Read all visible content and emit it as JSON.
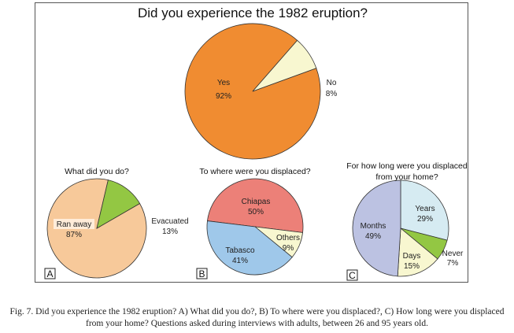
{
  "chart_data": [
    {
      "type": "pie",
      "title": "Did you experience the 1982 eruption?",
      "slices": [
        {
          "label": "Yes",
          "value": 92,
          "value_label": "92%",
          "color": "#f08c31"
        },
        {
          "label": "No",
          "value": 8,
          "value_label": "8%",
          "color": "#f8f7d0"
        }
      ]
    },
    {
      "type": "pie",
      "panel": "A",
      "title": "What did you do?",
      "slices": [
        {
          "label": "Ran away",
          "value": 87,
          "value_label": "87%",
          "color": "#f7c99a"
        },
        {
          "label": "Evacuated",
          "value": 13,
          "value_label": "13%",
          "color": "#93c743"
        }
      ]
    },
    {
      "type": "pie",
      "panel": "B",
      "title": "To where were you displaced?",
      "slices": [
        {
          "label": "Chiapas",
          "value": 50,
          "value_label": "50%",
          "color": "#ec8078"
        },
        {
          "label": "Others",
          "value": 9,
          "value_label": "9%",
          "color": "#f8f7d0"
        },
        {
          "label": "Tabasco",
          "value": 41,
          "value_label": "41%",
          "color": "#9fc8ea"
        }
      ]
    },
    {
      "type": "pie",
      "panel": "C",
      "title": "For how long were you displaced from your home?",
      "slices": [
        {
          "label": "Years",
          "value": 29,
          "value_label": "29%",
          "color": "#d6ebf2"
        },
        {
          "label": "Never",
          "value": 7,
          "value_label": "7%",
          "color": "#93c743"
        },
        {
          "label": "Days",
          "value": 15,
          "value_label": "15%",
          "color": "#f8f7d0"
        },
        {
          "label": "Months",
          "value": 49,
          "value_label": "49%",
          "color": "#bcc2e2"
        }
      ]
    }
  ],
  "caption": "Fig. 7. Did you experience the 1982 eruption? A) What did you do?, B) To where were you displaced?, C) How long were you displaced from your home? Questions asked during interviews with adults, between 26 and 95 years old."
}
